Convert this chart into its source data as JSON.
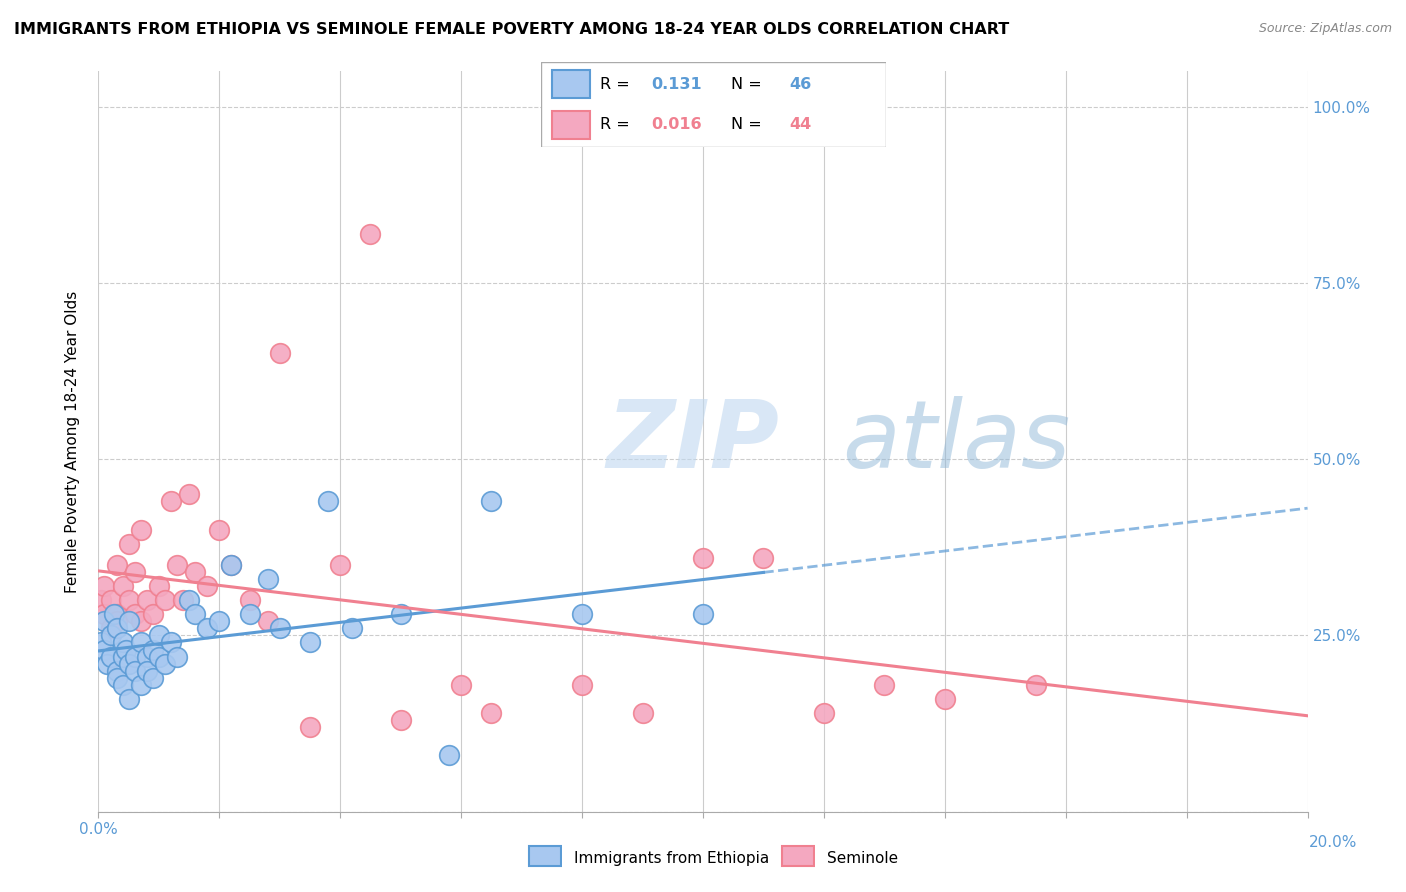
{
  "title": "IMMIGRANTS FROM ETHIOPIA VS SEMINOLE FEMALE POVERTY AMONG 18-24 YEAR OLDS CORRELATION CHART",
  "source": "Source: ZipAtlas.com",
  "ylabel": "Female Poverty Among 18-24 Year Olds",
  "xlim": [
    0.0,
    0.2
  ],
  "ylim": [
    0.0,
    1.05
  ],
  "yticks": [
    0.0,
    0.25,
    0.5,
    0.75,
    1.0
  ],
  "ytick_labels": [
    "",
    "25.0%",
    "50.0%",
    "75.0%",
    "100.0%"
  ],
  "xticks": [
    0.0,
    0.02,
    0.04,
    0.06,
    0.08,
    0.1,
    0.12,
    0.14,
    0.16,
    0.18,
    0.2
  ],
  "legend_R1": "0.131",
  "legend_N1": "46",
  "legend_R2": "0.016",
  "legend_N2": "44",
  "color_blue": "#A8C8F0",
  "color_pink": "#F4A8C0",
  "color_line_blue": "#5B9BD5",
  "color_line_pink": "#F08090",
  "color_right_axis": "#5B9BD5",
  "watermark_zip": "ZIP",
  "watermark_atlas": "atlas",
  "ethiopia_x": [
    0.0005,
    0.001,
    0.001,
    0.0015,
    0.002,
    0.002,
    0.0025,
    0.003,
    0.003,
    0.003,
    0.004,
    0.004,
    0.004,
    0.0045,
    0.005,
    0.005,
    0.005,
    0.006,
    0.006,
    0.007,
    0.007,
    0.008,
    0.008,
    0.009,
    0.009,
    0.01,
    0.01,
    0.011,
    0.012,
    0.013,
    0.015,
    0.016,
    0.018,
    0.02,
    0.022,
    0.025,
    0.028,
    0.03,
    0.035,
    0.038,
    0.042,
    0.05,
    0.058,
    0.065,
    0.08,
    0.1
  ],
  "ethiopia_y": [
    0.24,
    0.27,
    0.23,
    0.21,
    0.22,
    0.25,
    0.28,
    0.26,
    0.2,
    0.19,
    0.22,
    0.18,
    0.24,
    0.23,
    0.21,
    0.16,
    0.27,
    0.22,
    0.2,
    0.24,
    0.18,
    0.22,
    0.2,
    0.23,
    0.19,
    0.22,
    0.25,
    0.21,
    0.24,
    0.22,
    0.3,
    0.28,
    0.26,
    0.27,
    0.35,
    0.28,
    0.33,
    0.26,
    0.24,
    0.44,
    0.26,
    0.28,
    0.08,
    0.44,
    0.28,
    0.28
  ],
  "seminole_x": [
    0.0005,
    0.001,
    0.001,
    0.002,
    0.002,
    0.003,
    0.003,
    0.003,
    0.004,
    0.005,
    0.005,
    0.006,
    0.006,
    0.007,
    0.007,
    0.008,
    0.009,
    0.01,
    0.011,
    0.012,
    0.013,
    0.014,
    0.015,
    0.016,
    0.018,
    0.02,
    0.022,
    0.025,
    0.028,
    0.03,
    0.035,
    0.04,
    0.045,
    0.05,
    0.06,
    0.065,
    0.08,
    0.09,
    0.1,
    0.11,
    0.12,
    0.13,
    0.14,
    0.155
  ],
  "seminole_y": [
    0.3,
    0.28,
    0.32,
    0.26,
    0.3,
    0.35,
    0.28,
    0.27,
    0.32,
    0.3,
    0.38,
    0.28,
    0.34,
    0.27,
    0.4,
    0.3,
    0.28,
    0.32,
    0.3,
    0.44,
    0.35,
    0.3,
    0.45,
    0.34,
    0.32,
    0.4,
    0.35,
    0.3,
    0.27,
    0.65,
    0.12,
    0.35,
    0.82,
    0.13,
    0.18,
    0.14,
    0.18,
    0.14,
    0.36,
    0.36,
    0.14,
    0.18,
    0.16,
    0.18
  ],
  "ethiopia_line_x": [
    0.0,
    0.105
  ],
  "seminole_line_x": [
    0.0,
    0.2
  ]
}
